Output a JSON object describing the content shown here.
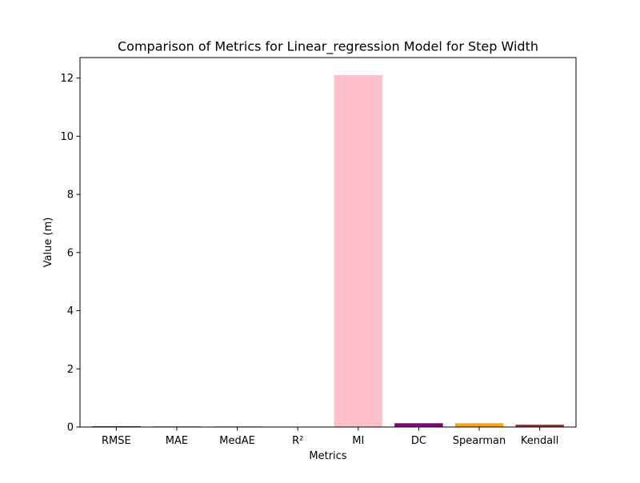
{
  "chart_data": {
    "type": "bar",
    "title": "Comparison of Metrics for Linear_regression Model for Step Width",
    "xlabel": "Metrics",
    "ylabel": "Value (m)",
    "categories": [
      "RMSE",
      "MAE",
      "MedAE",
      "R²",
      "MI",
      "DC",
      "Spearman",
      "Kendall"
    ],
    "values": [
      0.025,
      0.02,
      0.018,
      0.0,
      12.1,
      0.13,
      0.13,
      0.08
    ],
    "colors": [
      "#0000ff",
      "#ff0000",
      "#008000",
      "#00bfbf",
      "#ffc0cb",
      "#800080",
      "#ffa500",
      "#a52a2a"
    ],
    "ylim": [
      0,
      12.705
    ],
    "yticks": [
      0,
      2,
      4,
      6,
      8,
      10,
      12
    ],
    "grid": false,
    "legend": "none"
  }
}
